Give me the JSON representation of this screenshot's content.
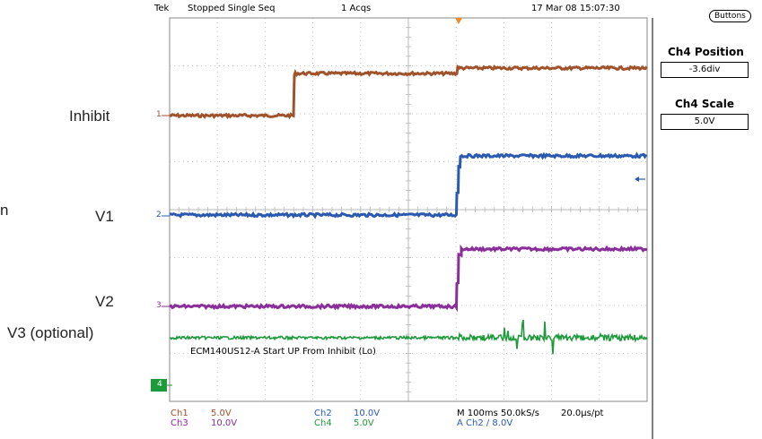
{
  "status_bar": {
    "brand": "Tek",
    "state": "Stopped  Single Seq",
    "acqs": "1 Acqs",
    "datetime": "17 Mar 08 15:07:30"
  },
  "side_labels": {
    "inhibit": "Inhibit",
    "v1": "V1",
    "v2": "V2",
    "v3": "V3 (optional)",
    "cut_letter": "n"
  },
  "channel_markers": {
    "ch1": "1",
    "ch2": "2",
    "ch3": "3",
    "ch4": "4"
  },
  "annotation": "ECM140US12-A Start UP From Inhibit (Lo)",
  "right_panel": {
    "buttons_label": "Buttons",
    "position_title": "Ch4 Position",
    "position_value": "-3.6div",
    "scale_title": "Ch4 Scale",
    "scale_value": "5.0V"
  },
  "footer": {
    "ch1_name": "Ch1",
    "ch1_value": "5.0V",
    "ch3_name": "Ch3",
    "ch3_value": "10.0V",
    "ch2_name": "Ch2",
    "ch2_value": "10.0V",
    "ch4_name": "Ch4",
    "ch4_value": "5.0V",
    "timebase": "M 100ms 50.0kS/s",
    "resolution": "20.0μs/pt",
    "trigger": "A  Ch2  ∕  8.0V"
  },
  "colors": {
    "ch1": "#a0532a",
    "ch2": "#2a5ab0",
    "ch3": "#8a2e9a",
    "ch4": "#1f9a3a",
    "grid": "#b8b8b8",
    "trigger_marker": "#f08a2a"
  }
}
